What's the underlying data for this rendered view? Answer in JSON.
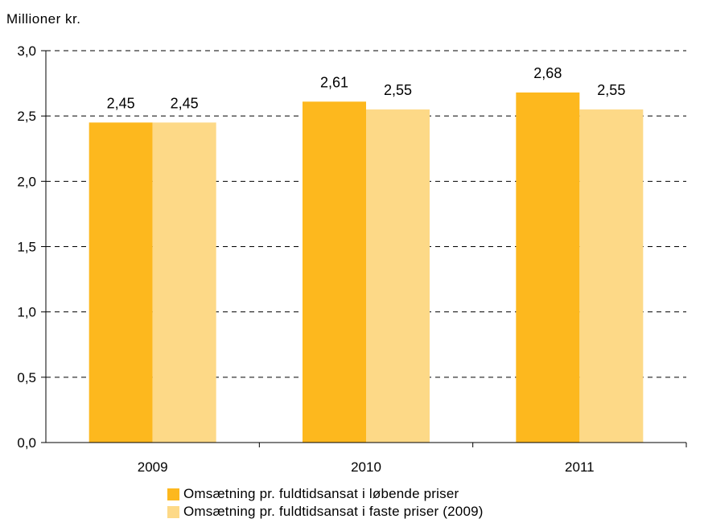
{
  "chart_data": {
    "type": "bar",
    "ylabel": "Millioner kr.",
    "categories": [
      "2009",
      "2010",
      "2011"
    ],
    "series": [
      {
        "name": "Omsætning pr. fuldtidsansat i løbende priser",
        "values": [
          2.45,
          2.61,
          2.68
        ],
        "labels": [
          "2,45",
          "2,61",
          "2,68"
        ],
        "color": "#FDB81E"
      },
      {
        "name": "Omsætning pr. fuldtidsansat i faste priser (2009)",
        "values": [
          2.45,
          2.55,
          2.55
        ],
        "labels": [
          "2,45",
          "2,55",
          "2,55"
        ],
        "color": "#FDD987"
      }
    ],
    "ylim": [
      0,
      3.0
    ],
    "yticks": [
      0,
      0.5,
      1.0,
      1.5,
      2.0,
      2.5,
      3.0
    ],
    "ytick_labels": [
      "0,0",
      "0,5",
      "1,0",
      "1,5",
      "2,0",
      "2,5",
      "3,0"
    ],
    "grid": true,
    "grid_style": "dashed",
    "legend_position": "bottom"
  }
}
